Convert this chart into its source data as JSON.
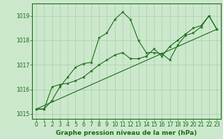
{
  "bg_color": "#cce8cc",
  "grid_color": "#aaccaa",
  "line_color": "#1a6b1a",
  "xlabel": "Graphe pression niveau de la mer (hPa)",
  "ylim": [
    1014.8,
    1019.5
  ],
  "xlim": [
    -0.5,
    23.5
  ],
  "yticks": [
    1015,
    1016,
    1017,
    1018,
    1019
  ],
  "xticks": [
    0,
    1,
    2,
    3,
    4,
    5,
    6,
    7,
    8,
    9,
    10,
    11,
    12,
    13,
    14,
    15,
    16,
    17,
    18,
    19,
    20,
    21,
    22,
    23
  ],
  "series1_y": [
    1015.2,
    1015.2,
    1015.55,
    1016.1,
    1016.5,
    1016.9,
    1017.05,
    1017.1,
    1018.1,
    1018.3,
    1018.85,
    1019.15,
    1018.85,
    1018.0,
    1017.5,
    1017.5,
    1017.45,
    1017.2,
    1017.8,
    1018.2,
    1018.3,
    1018.55,
    1019.0,
    1018.45
  ],
  "series2_y": [
    1015.2,
    1015.2,
    1016.1,
    1016.2,
    1016.25,
    1016.35,
    1016.5,
    1016.75,
    1017.0,
    1017.2,
    1017.4,
    1017.5,
    1017.25,
    1017.25,
    1017.35,
    1017.65,
    1017.35,
    1017.75,
    1018.0,
    1018.25,
    1018.5,
    1018.6,
    1019.0,
    1018.45
  ],
  "series3_x": [
    0,
    23
  ],
  "series3_y": [
    1015.2,
    1018.45
  ],
  "tick_fontsize": 5.5,
  "xlabel_fontsize": 6.5
}
